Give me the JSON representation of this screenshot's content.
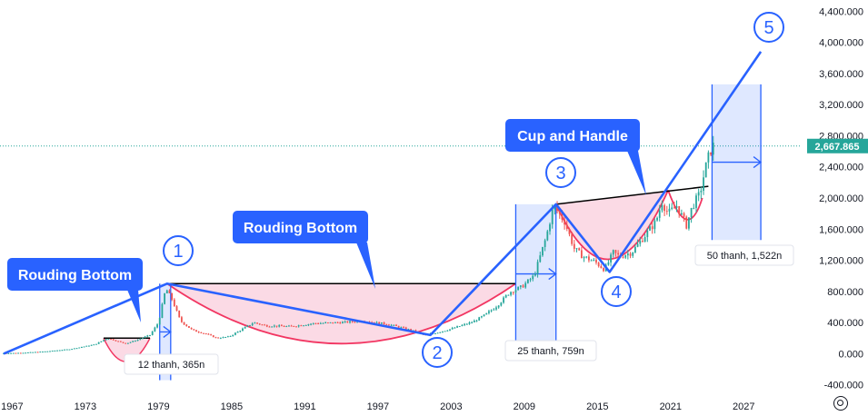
{
  "chart_data": {
    "type": "candlestick",
    "y_axis": {
      "ticks": [
        -400,
        0,
        400,
        800,
        1200,
        1600,
        2000,
        2400,
        2800,
        3200,
        3600,
        4000,
        4400
      ],
      "tick_labels": [
        "-400.000",
        "0.000",
        "400.000",
        "800.000",
        "1,200.000",
        "1,600.000",
        "2,000.000",
        "2,400.000",
        "2,800.000",
        "3,200.000",
        "3,600.000",
        "4,000.000",
        "4,400.000"
      ],
      "ylim": [
        -520,
        4520
      ]
    },
    "x_axis": {
      "ticks": [
        1967,
        1973,
        1979,
        1985,
        1991,
        1997,
        2003,
        2009,
        2015,
        2021,
        2027
      ],
      "tick_labels": [
        "1967",
        "1973",
        "1979",
        "1985",
        "1991",
        "1997",
        "2003",
        "2009",
        "2015",
        "2021",
        "2027"
      ],
      "xlim": [
        1966.0,
        2031.6
      ]
    },
    "current_price": {
      "value": 2667.865,
      "label": "2,667.865",
      "color": "#26a69a"
    },
    "price_path": [
      [
        1966.3,
        5
      ],
      [
        1968,
        12
      ],
      [
        1970,
        30
      ],
      [
        1972,
        60
      ],
      [
        1974,
        120
      ],
      [
        1975,
        200
      ],
      [
        1976.5,
        130
      ],
      [
        1977.5,
        180
      ],
      [
        1978.5,
        240
      ],
      [
        1979.2,
        400
      ],
      [
        1979.8,
        840
      ],
      [
        1980.3,
        700
      ],
      [
        1981,
        420
      ],
      [
        1982,
        300
      ],
      [
        1983,
        260
      ],
      [
        1984,
        200
      ],
      [
        1985,
        220
      ],
      [
        1986,
        310
      ],
      [
        1987,
        400
      ],
      [
        1988,
        360
      ],
      [
        1990,
        350
      ],
      [
        1992,
        390
      ],
      [
        1994,
        400
      ],
      [
        1996,
        420
      ],
      [
        1998,
        380
      ],
      [
        2000,
        300
      ],
      [
        2001,
        240
      ],
      [
        2002,
        270
      ],
      [
        2003,
        310
      ],
      [
        2005,
        410
      ],
      [
        2006,
        500
      ],
      [
        2007,
        620
      ],
      [
        2008,
        790
      ],
      [
        2009,
        860
      ],
      [
        2010,
        1000
      ],
      [
        2011,
        1500
      ],
      [
        2011.6,
        1900
      ],
      [
        2012.5,
        1700
      ],
      [
        2013.3,
        1350
      ],
      [
        2014,
        1250
      ],
      [
        2015,
        1180
      ],
      [
        2015.8,
        1080
      ],
      [
        2016.5,
        1300
      ],
      [
        2017,
        1250
      ],
      [
        2018,
        1300
      ],
      [
        2019,
        1500
      ],
      [
        2020,
        1700
      ],
      [
        2020.5,
        1950
      ],
      [
        2021,
        1800
      ],
      [
        2021.7,
        1900
      ],
      [
        2022.5,
        1650
      ],
      [
        2023,
        1900
      ],
      [
        2023.6,
        2050
      ],
      [
        2024,
        2350
      ],
      [
        2024.3,
        2520
      ],
      [
        2024.6,
        2667.865
      ]
    ],
    "annotations": {
      "rounding_bottom_1": {
        "label": "Rouding Bottom"
      },
      "rounding_bottom_2": {
        "label": "Rouding Bottom"
      },
      "cup_and_handle": {
        "label": "Cup and Handle"
      },
      "wave_labels": [
        "1",
        "2",
        "3",
        "4",
        "5"
      ],
      "measure_1": {
        "label": "12 thanh, 365n"
      },
      "measure_2": {
        "label": "25 thanh, 759n"
      },
      "measure_3": {
        "label": "50 thanh, 1,522n"
      }
    },
    "colors": {
      "up": "#26a69a",
      "down": "#ef5350",
      "trend": "#2962ff",
      "pattern": "#f23662",
      "pattern_fill": "#f8bbd0"
    }
  }
}
